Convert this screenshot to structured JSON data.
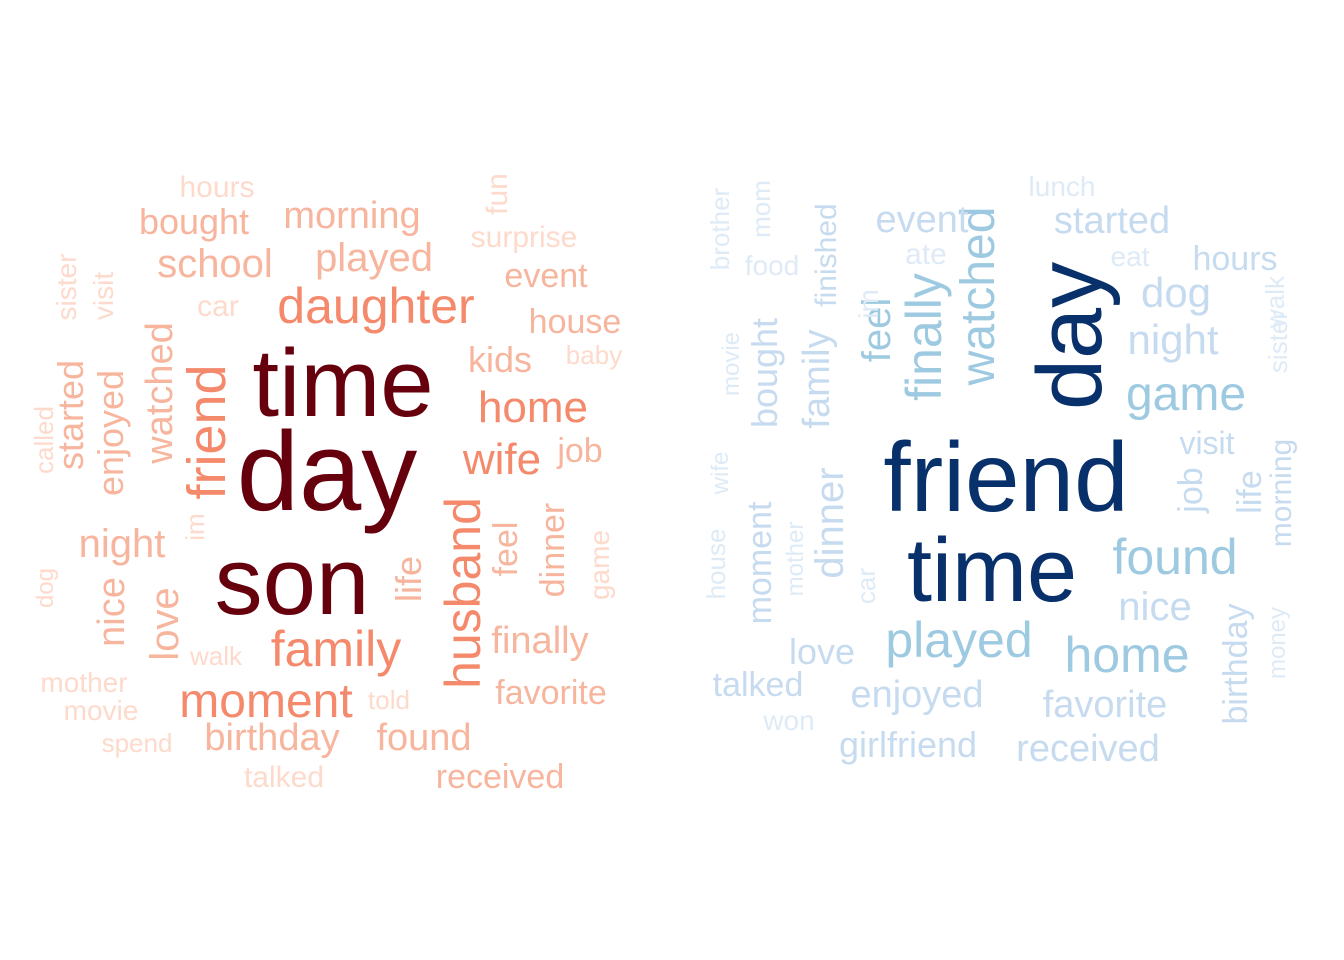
{
  "chart_data": [
    {
      "type": "wordcloud",
      "palette": "reds",
      "words": [
        {
          "text": "time",
          "color": "#67000d",
          "rotated": false
        },
        {
          "text": "day",
          "color": "#67000d",
          "rotated": false
        },
        {
          "text": "son",
          "color": "#67000d",
          "rotated": false
        },
        {
          "text": "daughter",
          "color": "#f4896b",
          "rotated": false
        },
        {
          "text": "friend",
          "color": "#f4896b",
          "rotated": true
        },
        {
          "text": "husband",
          "color": "#f4896b",
          "rotated": true
        },
        {
          "text": "family",
          "color": "#f4896b",
          "rotated": false
        },
        {
          "text": "moment",
          "color": "#f4896b",
          "rotated": false
        },
        {
          "text": "wife",
          "color": "#f4896b",
          "rotated": false
        },
        {
          "text": "home",
          "color": "#f4896b",
          "rotated": false
        },
        {
          "text": "school",
          "color": "#f7b59e",
          "rotated": false
        },
        {
          "text": "played",
          "color": "#f7b59e",
          "rotated": false
        },
        {
          "text": "morning",
          "color": "#f7b59e",
          "rotated": false
        },
        {
          "text": "bought",
          "color": "#f7b59e",
          "rotated": false
        },
        {
          "text": "watched",
          "color": "#f7b59e",
          "rotated": true
        },
        {
          "text": "enjoyed",
          "color": "#f7b59e",
          "rotated": true
        },
        {
          "text": "night",
          "color": "#f7b59e",
          "rotated": false
        },
        {
          "text": "kids",
          "color": "#f7b59e",
          "rotated": false
        },
        {
          "text": "house",
          "color": "#f7b59e",
          "rotated": false
        },
        {
          "text": "event",
          "color": "#f7b59e",
          "rotated": false
        },
        {
          "text": "job",
          "color": "#f7b59e",
          "rotated": false
        },
        {
          "text": "feel",
          "color": "#f7b59e",
          "rotated": true
        },
        {
          "text": "dinner",
          "color": "#f7b59e",
          "rotated": true
        },
        {
          "text": "finally",
          "color": "#f7b59e",
          "rotated": false
        },
        {
          "text": "favorite",
          "color": "#f7b59e",
          "rotated": false
        },
        {
          "text": "found",
          "color": "#f7b59e",
          "rotated": false
        },
        {
          "text": "birthday",
          "color": "#f7b59e",
          "rotated": false
        },
        {
          "text": "received",
          "color": "#f7b59e",
          "rotated": false
        },
        {
          "text": "life",
          "color": "#f7b59e",
          "rotated": true
        },
        {
          "text": "love",
          "color": "#f7b59e",
          "rotated": true
        },
        {
          "text": "nice",
          "color": "#f7b59e",
          "rotated": true
        },
        {
          "text": "started",
          "color": "#f7b59e",
          "rotated": true
        },
        {
          "text": "hours",
          "color": "#fddacb",
          "rotated": false
        },
        {
          "text": "surprise",
          "color": "#fddacb",
          "rotated": false
        },
        {
          "text": "fun",
          "color": "#fddacb",
          "rotated": true
        },
        {
          "text": "car",
          "color": "#fddacb",
          "rotated": false
        },
        {
          "text": "baby",
          "color": "#fddacb",
          "rotated": false
        },
        {
          "text": "sister",
          "color": "#fddacb",
          "rotated": true
        },
        {
          "text": "visit",
          "color": "#fddacb",
          "rotated": true
        },
        {
          "text": "called",
          "color": "#fddacb",
          "rotated": true
        },
        {
          "text": "im",
          "color": "#fddacb",
          "rotated": true
        },
        {
          "text": "game",
          "color": "#fddacb",
          "rotated": true
        },
        {
          "text": "dog",
          "color": "#fddacb",
          "rotated": true
        },
        {
          "text": "walk",
          "color": "#fddacb",
          "rotated": false
        },
        {
          "text": "mother",
          "color": "#fddacb",
          "rotated": false
        },
        {
          "text": "movie",
          "color": "#fddacb",
          "rotated": false
        },
        {
          "text": "told",
          "color": "#fddacb",
          "rotated": false
        },
        {
          "text": "spend",
          "color": "#fddacb",
          "rotated": false
        },
        {
          "text": "talked",
          "color": "#fddacb",
          "rotated": false
        }
      ]
    },
    {
      "type": "wordcloud",
      "palette": "blues",
      "words": [
        {
          "text": "friend",
          "color": "#08306b",
          "rotated": false
        },
        {
          "text": "time",
          "color": "#08306b",
          "rotated": false
        },
        {
          "text": "day",
          "color": "#08306b",
          "rotated": true
        },
        {
          "text": "watched",
          "color": "#9ecae1",
          "rotated": true
        },
        {
          "text": "played",
          "color": "#9ecae1",
          "rotated": false
        },
        {
          "text": "home",
          "color": "#9ecae1",
          "rotated": false
        },
        {
          "text": "found",
          "color": "#9ecae1",
          "rotated": false
        },
        {
          "text": "game",
          "color": "#9ecae1",
          "rotated": false
        },
        {
          "text": "finally",
          "color": "#9ecae1",
          "rotated": true
        },
        {
          "text": "feel",
          "color": "#9ecae1",
          "rotated": true
        },
        {
          "text": "night",
          "color": "#c6dbef",
          "rotated": false
        },
        {
          "text": "dog",
          "color": "#c6dbef",
          "rotated": false
        },
        {
          "text": "started",
          "color": "#c6dbef",
          "rotated": false
        },
        {
          "text": "event",
          "color": "#c6dbef",
          "rotated": false
        },
        {
          "text": "hours",
          "color": "#c6dbef",
          "rotated": false
        },
        {
          "text": "nice",
          "color": "#c6dbef",
          "rotated": false
        },
        {
          "text": "enjoyed",
          "color": "#c6dbef",
          "rotated": false
        },
        {
          "text": "favorite",
          "color": "#c6dbef",
          "rotated": false
        },
        {
          "text": "received",
          "color": "#c6dbef",
          "rotated": false
        },
        {
          "text": "girlfriend",
          "color": "#c6dbef",
          "rotated": false
        },
        {
          "text": "love",
          "color": "#c6dbef",
          "rotated": false
        },
        {
          "text": "talked",
          "color": "#c6dbef",
          "rotated": false
        },
        {
          "text": "visit",
          "color": "#c6dbef",
          "rotated": false
        },
        {
          "text": "job",
          "color": "#c6dbef",
          "rotated": true
        },
        {
          "text": "life",
          "color": "#c6dbef",
          "rotated": true
        },
        {
          "text": "morning",
          "color": "#c6dbef",
          "rotated": true
        },
        {
          "text": "birthday",
          "color": "#c6dbef",
          "rotated": true
        },
        {
          "text": "dinner",
          "color": "#c6dbef",
          "rotated": true
        },
        {
          "text": "family",
          "color": "#c6dbef",
          "rotated": true
        },
        {
          "text": "finished",
          "color": "#c6dbef",
          "rotated": true
        },
        {
          "text": "bought",
          "color": "#c6dbef",
          "rotated": true
        },
        {
          "text": "moment",
          "color": "#c6dbef",
          "rotated": true
        },
        {
          "text": "lunch",
          "color": "#deebf7",
          "rotated": false
        },
        {
          "text": "ate",
          "color": "#deebf7",
          "rotated": false
        },
        {
          "text": "eat",
          "color": "#deebf7",
          "rotated": false
        },
        {
          "text": "food",
          "color": "#deebf7",
          "rotated": false
        },
        {
          "text": "won",
          "color": "#deebf7",
          "rotated": false
        },
        {
          "text": "im",
          "color": "#deebf7",
          "rotated": true
        },
        {
          "text": "brother",
          "color": "#deebf7",
          "rotated": true
        },
        {
          "text": "mom",
          "color": "#deebf7",
          "rotated": true
        },
        {
          "text": "walk",
          "color": "#deebf7",
          "rotated": true
        },
        {
          "text": "sister",
          "color": "#deebf7",
          "rotated": true
        },
        {
          "text": "movie",
          "color": "#deebf7",
          "rotated": true
        },
        {
          "text": "wife",
          "color": "#deebf7",
          "rotated": true
        },
        {
          "text": "house",
          "color": "#deebf7",
          "rotated": true
        },
        {
          "text": "mother",
          "color": "#deebf7",
          "rotated": true
        },
        {
          "text": "car",
          "color": "#deebf7",
          "rotated": true
        },
        {
          "text": "money",
          "color": "#deebf7",
          "rotated": true
        }
      ]
    }
  ]
}
